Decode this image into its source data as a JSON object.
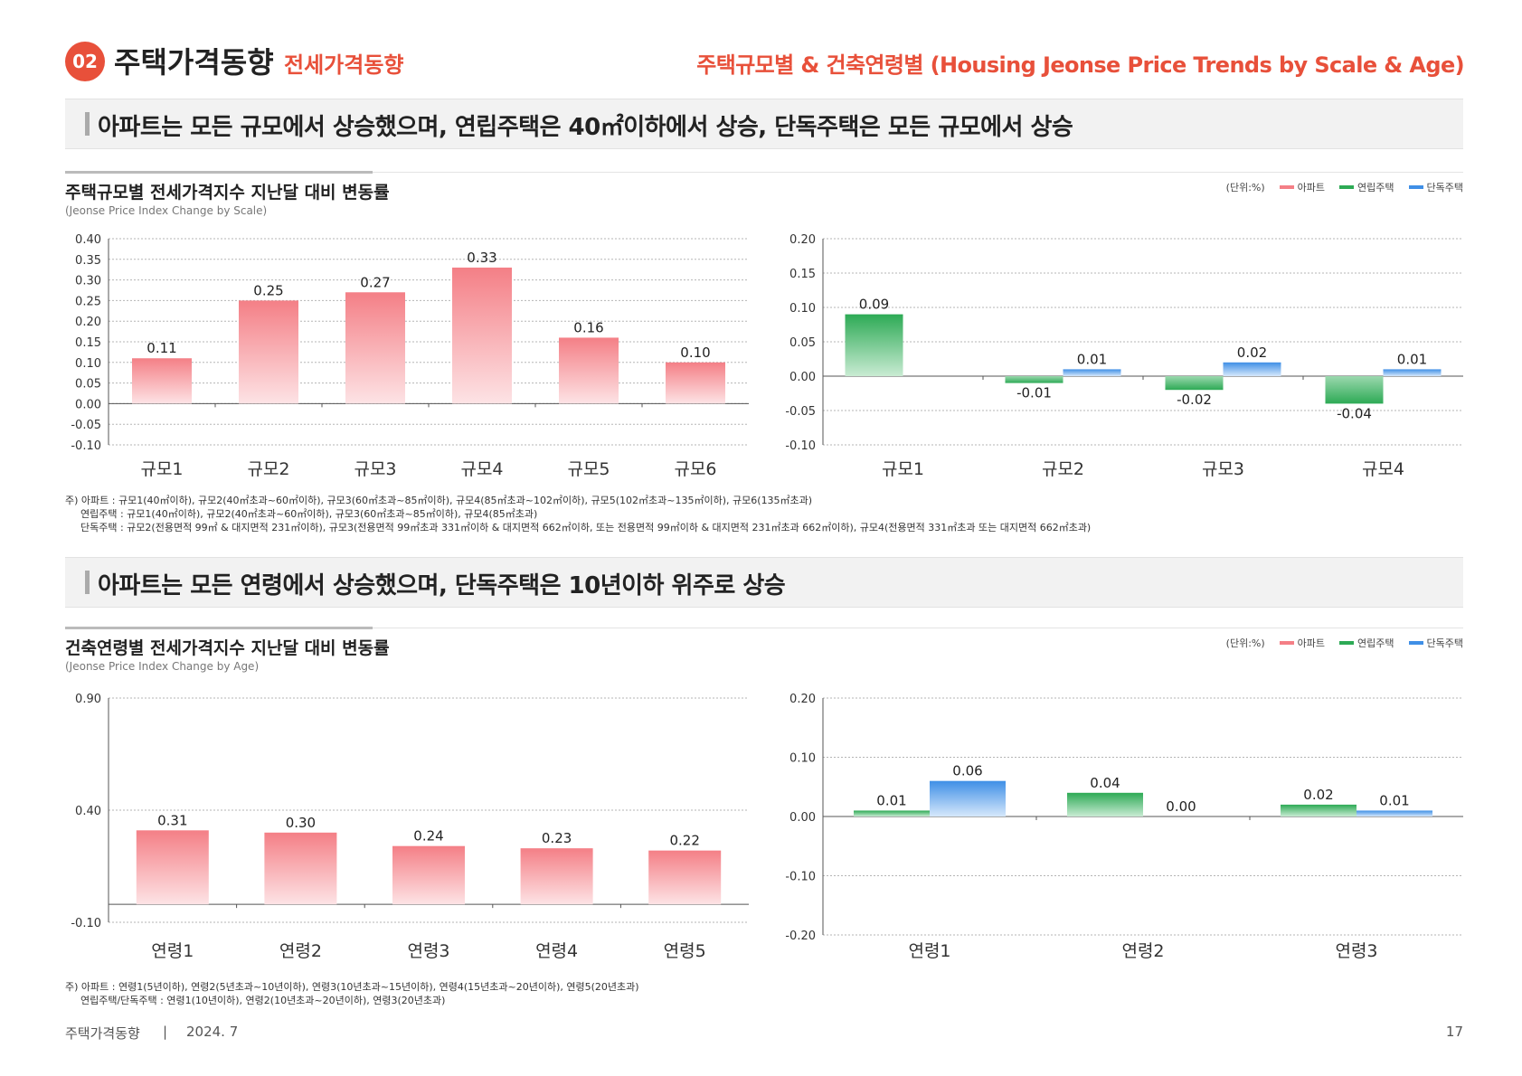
{
  "header": {
    "badge": "02",
    "title": "주택가격동향",
    "subtitle": "전세가격동향",
    "right": "주택규모별 & 건축연령별 (Housing Jeonse Price Trends by Scale & Age)"
  },
  "banner1": "아파트는 모든 규모에서 상승했으며, 연립주택은 40㎡이하에서 상승, 단독주택은 모든 규모에서 상승",
  "banner2": "아파트는 모든 연령에서 상승했으며, 단독주택은 10년이하 위주로 상승",
  "section1": {
    "title": "주택규모별 전세가격지수 지난달 대비 변동률",
    "subtitle": "(Jeonse Price Index Change by Scale)"
  },
  "section2": {
    "title": "건축연령별 전세가격지수 지난달 대비 변동률",
    "subtitle": "(Jeonse Price Index Change by Age)"
  },
  "legend": {
    "unit": "(단위:%)",
    "items": [
      "아파트",
      "연립주택",
      "단독주택"
    ]
  },
  "colors": {
    "apt": "#f47f86",
    "row": "#2daa55",
    "det": "#3f8fe6",
    "accent": "#e8503a"
  },
  "notes1": {
    "line1": "주) 아파트 : 규모1(40㎡이하), 규모2(40㎡초과~60㎡이하), 규모3(60㎡초과~85㎡이하), 규모4(85㎡초과~102㎡이하), 규모5(102㎡초과~135㎡이하), 규모6(135㎡초과)",
    "line2": "연립주택 : 규모1(40㎡이하), 규모2(40㎡초과~60㎡이하), 규모3(60㎡초과~85㎡이하), 규모4(85㎡초과)",
    "line3": "단독주택 : 규모2(전용면적 99㎡ & 대지면적 231㎡이하), 규모3(전용면적 99㎡초과 331㎡이하 & 대지면적 662㎡이하, 또는 전용면적 99㎡이하 & 대지면적 231㎡초과 662㎡이하), 규모4(전용면적 331㎡초과 또는 대지면적 662㎡초과)"
  },
  "notes2": {
    "line1": "주) 아파트 : 연령1(5년이하), 연령2(5년초과~10년이하), 연령3(10년초과~15년이하), 연령4(15년초과~20년이하), 연령5(20년초과)",
    "line2": "연립주택/단독주택 : 연령1(10년이하), 연령2(10년초과~20년이하), 연령3(20년초과)"
  },
  "footer": {
    "left": "주택가격동향",
    "sep": "|",
    "date": "2024. 7",
    "page": "17"
  },
  "chart_data": [
    {
      "type": "bar",
      "categories": [
        "규모1",
        "규모2",
        "규모3",
        "규모4",
        "규모5",
        "규모6"
      ],
      "series": [
        {
          "name": "아파트",
          "values": [
            0.11,
            0.25,
            0.27,
            0.33,
            0.16,
            0.1
          ]
        }
      ],
      "yticks": [
        "0.40",
        "0.35",
        "0.30",
        "0.25",
        "0.20",
        "0.15",
        "0.10",
        "0.05",
        "0.00",
        "-0.05",
        "-0.10"
      ],
      "ylim": [
        -0.1,
        0.4
      ],
      "labels": [
        "0.11",
        "0.25",
        "0.27",
        "0.33",
        "0.16",
        "0.10"
      ]
    },
    {
      "type": "bar",
      "categories": [
        "규모1",
        "규모2",
        "규모3",
        "규모4"
      ],
      "series": [
        {
          "name": "연립주택",
          "values": [
            0.09,
            -0.01,
            -0.02,
            -0.04
          ],
          "labels": [
            "0.09",
            "-0.01",
            "-0.02",
            "-0.04"
          ]
        },
        {
          "name": "단독주택",
          "values": [
            null,
            0.01,
            0.02,
            0.01
          ],
          "labels": [
            null,
            "0.01",
            "0.02",
            "0.01"
          ]
        }
      ],
      "yticks": [
        "0.20",
        "0.15",
        "0.10",
        "0.05",
        "0.00",
        "-0.05",
        "-0.10"
      ],
      "ylim": [
        -0.1,
        0.2
      ]
    },
    {
      "type": "bar",
      "categories": [
        "연령1",
        "연령2",
        "연령3",
        "연령4",
        "연령5"
      ],
      "series": [
        {
          "name": "아파트",
          "values": [
            0.31,
            0.3,
            0.24,
            0.23,
            0.22
          ]
        }
      ],
      "yticks": [
        "0.90",
        "0.40",
        "-0.10"
      ],
      "ylim": [
        -0.1,
        0.9
      ],
      "labels": [
        "0.31",
        "0.30",
        "0.24",
        "0.23",
        "0.22"
      ]
    },
    {
      "type": "bar",
      "categories": [
        "연령1",
        "연령2",
        "연령3"
      ],
      "series": [
        {
          "name": "연립주택",
          "values": [
            0.01,
            0.04,
            0.02
          ],
          "labels": [
            "0.01",
            "0.04",
            "0.02"
          ]
        },
        {
          "name": "단독주택",
          "values": [
            0.06,
            0.0,
            0.01
          ],
          "labels": [
            "0.06",
            "0.00",
            "0.01"
          ]
        }
      ],
      "yticks": [
        "0.20",
        "0.10",
        "0.00",
        "-0.10",
        "-0.20"
      ],
      "ylim": [
        -0.2,
        0.2
      ]
    }
  ]
}
